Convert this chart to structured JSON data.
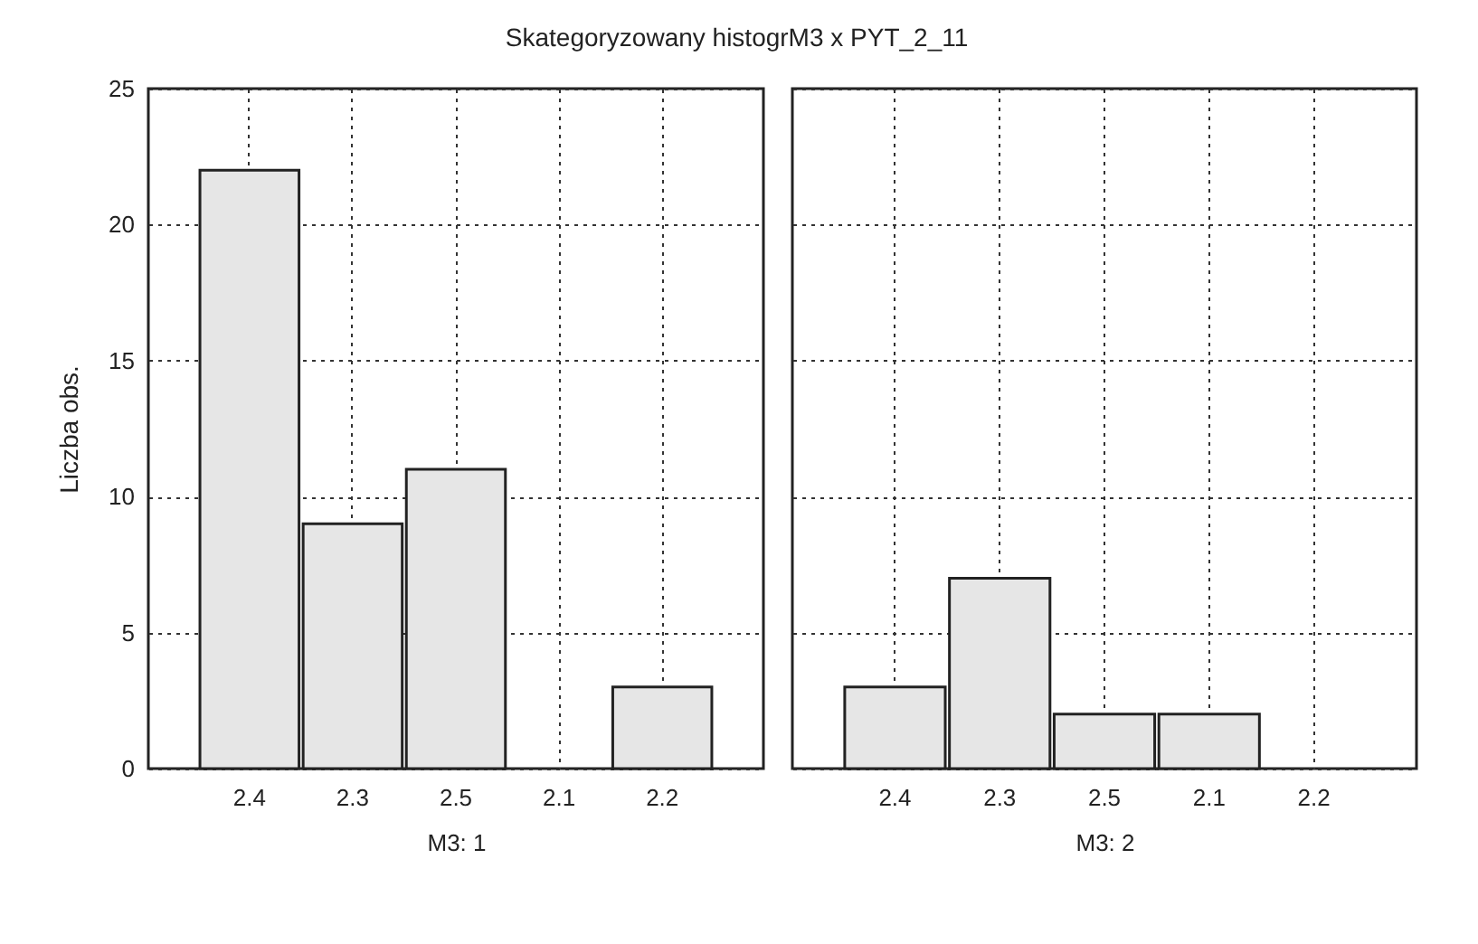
{
  "chart_data": [
    {
      "type": "bar",
      "title": "Skategoryzowany histogrM3 x PYT_2_11",
      "ylabel": "Liczba obs.",
      "xlabel": "M3: 1",
      "categories": [
        "2.4",
        "2.3",
        "2.5",
        "2.1",
        "2.2"
      ],
      "values": [
        22,
        9,
        11,
        0,
        3
      ],
      "color": "#e6e6e6",
      "ylim": [
        0,
        25
      ],
      "yticks": [
        0,
        5,
        10,
        15,
        20,
        25
      ],
      "grid": true
    },
    {
      "type": "bar",
      "xlabel": "M3: 2",
      "categories": [
        "2.4",
        "2.3",
        "2.5",
        "2.1",
        "2.2"
      ],
      "values": [
        3,
        7,
        2,
        2,
        0
      ],
      "color": "#e6e6e6",
      "ylim": [
        0,
        25
      ],
      "yticks": [
        0,
        5,
        10,
        15,
        20,
        25
      ],
      "grid": true,
      "tick_labels": "x"
    }
  ]
}
